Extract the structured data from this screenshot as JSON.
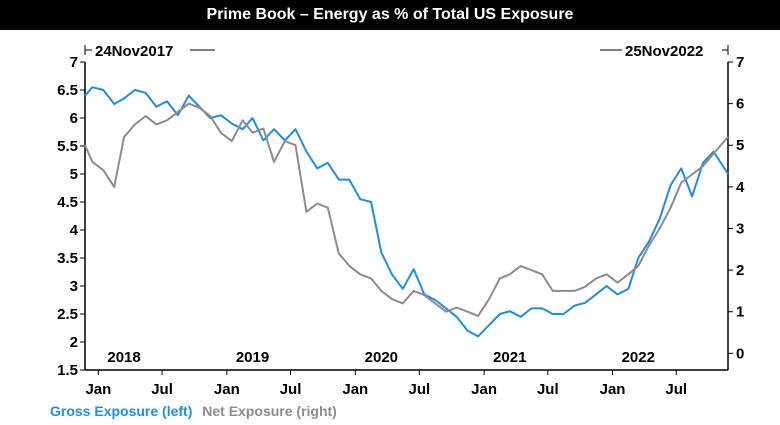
{
  "title": "Prime Book – Energy as % of Total US Exposure",
  "date_start": "24Nov2017",
  "date_end": "25Nov2022",
  "colors": {
    "gross": "#1f8ee0",
    "net": "#8c8c8c",
    "axis": "#000000",
    "title_bg": "#000000"
  },
  "legend": {
    "gross": "Gross Exposure (left)",
    "net": "Net Exposure (right)"
  },
  "chart_data": {
    "type": "line",
    "x_range": [
      "2017-11-24",
      "2022-11-25"
    ],
    "y_left": {
      "min": 1.5,
      "max": 7,
      "ticks": [
        "1.5",
        "2",
        "2.5",
        "3",
        "3.5",
        "4",
        "4.5",
        "5",
        "5.5",
        "6",
        "6.5",
        "7"
      ]
    },
    "y_right": {
      "min": -0.4,
      "max": 7,
      "ticks": [
        "0",
        "1",
        "2",
        "3",
        "4",
        "5",
        "6",
        "7"
      ]
    },
    "x_ticks": [
      "Jan",
      "Jul",
      "Jan",
      "Jul",
      "Jan",
      "Jul",
      "Jan",
      "Jul",
      "Jan",
      "Jul"
    ],
    "x_tick_dates": [
      "2018-01-01",
      "2018-07-01",
      "2019-01-01",
      "2019-07-01",
      "2020-01-01",
      "2020-07-01",
      "2021-01-01",
      "2021-07-01",
      "2022-01-01",
      "2022-07-01"
    ],
    "year_labels": [
      "2018",
      "2019",
      "2020",
      "2021",
      "2022"
    ],
    "year_label_dates": [
      "2018-03-15",
      "2019-03-15",
      "2020-03-15",
      "2021-03-15",
      "2022-03-15"
    ],
    "series": [
      {
        "name": "Gross Exposure (left)",
        "axis": "left",
        "x": [
          "2017-11-24",
          "2017-12-15",
          "2018-01-15",
          "2018-02-15",
          "2018-03-15",
          "2018-04-15",
          "2018-05-15",
          "2018-06-15",
          "2018-07-15",
          "2018-08-15",
          "2018-09-15",
          "2018-10-15",
          "2018-11-15",
          "2018-12-15",
          "2019-01-15",
          "2019-02-15",
          "2019-03-15",
          "2019-04-15",
          "2019-05-15",
          "2019-06-15",
          "2019-07-15",
          "2019-08-15",
          "2019-09-15",
          "2019-10-15",
          "2019-11-15",
          "2019-12-15",
          "2020-01-15",
          "2020-02-15",
          "2020-03-15",
          "2020-04-15",
          "2020-05-15",
          "2020-06-15",
          "2020-07-15",
          "2020-08-15",
          "2020-09-15",
          "2020-10-15",
          "2020-11-15",
          "2020-12-15",
          "2021-01-15",
          "2021-02-15",
          "2021-03-15",
          "2021-04-15",
          "2021-05-15",
          "2021-06-15",
          "2021-07-15",
          "2021-08-15",
          "2021-09-15",
          "2021-10-15",
          "2021-11-15",
          "2021-12-15",
          "2022-01-15",
          "2022-02-15",
          "2022-03-15",
          "2022-04-15",
          "2022-05-15",
          "2022-06-15",
          "2022-07-15",
          "2022-08-15",
          "2022-09-15",
          "2022-10-15",
          "2022-11-25"
        ],
        "y": [
          6.4,
          6.55,
          6.5,
          6.25,
          6.35,
          6.5,
          6.45,
          6.2,
          6.3,
          6.05,
          6.4,
          6.2,
          6.0,
          6.05,
          5.9,
          5.8,
          6.0,
          5.6,
          5.8,
          5.6,
          5.8,
          5.4,
          5.1,
          5.2,
          4.9,
          4.9,
          4.55,
          4.5,
          3.6,
          3.2,
          2.95,
          3.3,
          2.85,
          2.75,
          2.6,
          2.45,
          2.2,
          2.1,
          2.3,
          2.5,
          2.55,
          2.45,
          2.6,
          2.6,
          2.5,
          2.5,
          2.65,
          2.7,
          2.85,
          3.0,
          2.85,
          2.95,
          3.5,
          3.8,
          4.2,
          4.8,
          5.1,
          4.6,
          5.2,
          5.4,
          5.0
        ]
      },
      {
        "name": "Net Exposure (right)",
        "axis": "right",
        "x": [
          "2017-11-24",
          "2017-12-15",
          "2018-01-15",
          "2018-02-15",
          "2018-03-15",
          "2018-04-15",
          "2018-05-15",
          "2018-06-15",
          "2018-07-15",
          "2018-08-15",
          "2018-09-15",
          "2018-10-15",
          "2018-11-15",
          "2018-12-15",
          "2019-01-15",
          "2019-02-15",
          "2019-03-15",
          "2019-04-15",
          "2019-05-15",
          "2019-06-15",
          "2019-07-15",
          "2019-08-15",
          "2019-09-15",
          "2019-10-15",
          "2019-11-15",
          "2019-12-15",
          "2020-01-15",
          "2020-02-15",
          "2020-03-15",
          "2020-04-15",
          "2020-05-15",
          "2020-06-15",
          "2020-07-15",
          "2020-08-15",
          "2020-09-15",
          "2020-10-15",
          "2020-11-15",
          "2020-12-15",
          "2021-01-15",
          "2021-02-15",
          "2021-03-15",
          "2021-04-15",
          "2021-05-15",
          "2021-06-15",
          "2021-07-15",
          "2021-08-15",
          "2021-09-15",
          "2021-10-15",
          "2021-11-15",
          "2021-12-15",
          "2022-01-15",
          "2022-02-15",
          "2022-03-15",
          "2022-04-15",
          "2022-05-15",
          "2022-06-15",
          "2022-07-15",
          "2022-08-15",
          "2022-09-15",
          "2022-10-15",
          "2022-11-25"
        ],
        "y": [
          5.0,
          4.6,
          4.4,
          4.0,
          5.2,
          5.5,
          5.7,
          5.5,
          5.6,
          5.8,
          6.0,
          5.9,
          5.7,
          5.3,
          5.1,
          5.6,
          5.3,
          5.4,
          4.6,
          5.1,
          5.0,
          3.4,
          3.6,
          3.5,
          2.4,
          2.1,
          1.9,
          1.8,
          1.5,
          1.3,
          1.2,
          1.5,
          1.4,
          1.2,
          1.0,
          1.1,
          1.0,
          0.9,
          1.3,
          1.8,
          1.9,
          2.1,
          2.0,
          1.9,
          1.5,
          1.5,
          1.5,
          1.6,
          1.8,
          1.9,
          1.7,
          1.9,
          2.1,
          2.6,
          3.0,
          3.5,
          4.1,
          4.3,
          4.5,
          4.8,
          5.2
        ]
      }
    ]
  }
}
